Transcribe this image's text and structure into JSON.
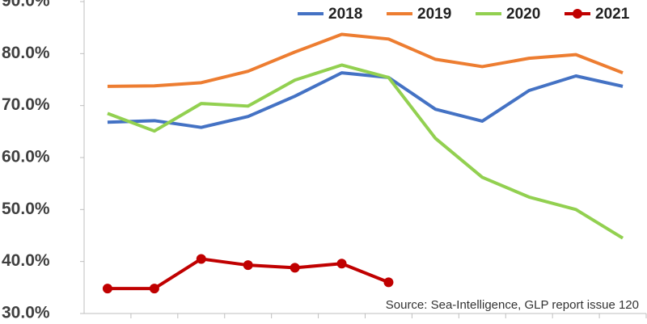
{
  "chart_data": {
    "type": "line",
    "categories": [
      null,
      null,
      null,
      null,
      null,
      null,
      null,
      null,
      null,
      null,
      null,
      null
    ],
    "series": [
      {
        "name": "2018",
        "color": "#4472c4",
        "values": [
          66.8,
          67.1,
          65.8,
          67.9,
          71.8,
          76.3,
          75.4,
          69.3,
          67.0,
          72.9,
          75.7,
          73.7
        ]
      },
      {
        "name": "2019",
        "color": "#ed7d31",
        "values": [
          73.7,
          73.8,
          74.4,
          76.6,
          80.3,
          83.7,
          82.8,
          78.9,
          77.5,
          79.1,
          79.8,
          76.3
        ]
      },
      {
        "name": "2020",
        "color": "#92d050",
        "values": [
          68.5,
          65.1,
          70.4,
          69.9,
          74.9,
          77.8,
          75.4,
          63.7,
          56.2,
          52.4,
          50.0,
          44.5
        ]
      },
      {
        "name": "2021",
        "color": "#c00000",
        "marker": "circle",
        "values": [
          34.8,
          34.8,
          40.5,
          39.3,
          38.8,
          39.6,
          36.0,
          null,
          null,
          null,
          null,
          null
        ]
      }
    ],
    "ylim": [
      30,
      90
    ],
    "yticks": [
      {
        "value": 30,
        "label": "30.0%"
      },
      {
        "value": 40,
        "label": "40.0%"
      },
      {
        "value": 50,
        "label": "50.0%"
      },
      {
        "value": 60,
        "label": "60.0%"
      },
      {
        "value": 70,
        "label": "70.0%"
      },
      {
        "value": 80,
        "label": "80.0%"
      },
      {
        "value": 90,
        "label": "90.0%"
      }
    ],
    "grid": false,
    "legend": "top-right",
    "annotation": "Source: Sea-Intelligence, GLP report issue 120"
  }
}
